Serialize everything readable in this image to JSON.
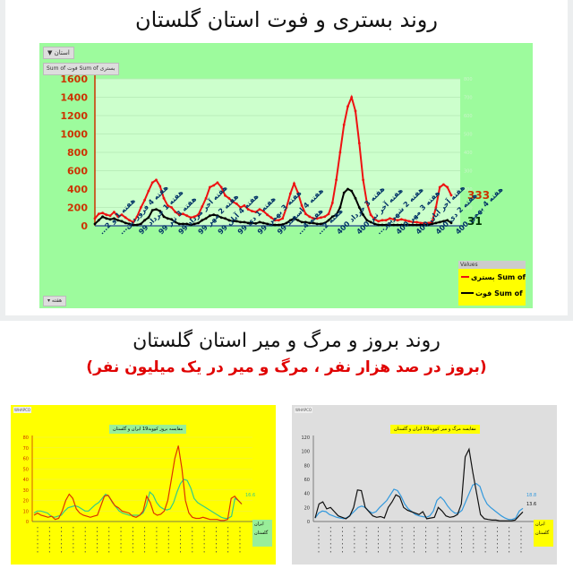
{
  "top": {
    "title": "روند بستری و فوت استان گلستان",
    "filter_button": "استان ▼",
    "sum_buttons": "Sum of فوت   Sum of بستری",
    "week_button": "▾ هفته",
    "legend_header": "Values",
    "legend_items": [
      "بستری Sum of",
      "فوت Sum of"
    ],
    "end_labels": {
      "hospitalized": "333",
      "deaths": "31"
    }
  },
  "bottom": {
    "title": "روند بروز و مرگ و میر استان گلستان",
    "subtitle": "(بروز در صد هزار نفر ، مرگ و میر در یک میلیون نفر)",
    "left_chart_title": "مقایسه بروز کووید19 ایران و گلستان",
    "right_chart_title": "مقایسه مرگ و میر کووید19 ایران و گلستان",
    "legend_items": [
      "ایران",
      "گلستان"
    ],
    "left_end_label": "16.6",
    "right_end_labels": [
      "18.8",
      "13.6"
    ]
  },
  "colors": {
    "hospitalized": "#ee1111",
    "deaths": "#000000",
    "axis_left": "#cc3300",
    "iran_incidence": "#33cc88",
    "golestan_incidence": "#dd3300",
    "iran_mortality": "#3399dd",
    "golestan_mortality": "#111111"
  },
  "chart_data": [
    {
      "type": "line",
      "title": "روند بستری و فوت استان گلستان",
      "xlabel": "",
      "ylabel": "",
      "ylim": [
        0,
        1600
      ],
      "yticks": [
        0,
        200,
        400,
        600,
        800,
        1000,
        1200,
        1400,
        1600
      ],
      "y2lim": [
        0,
        800
      ],
      "y2ticks": [
        0,
        100,
        200,
        300,
        400,
        500,
        600,
        700,
        800
      ],
      "grid": true,
      "legend_position": "bottom-right",
      "categories": [
        "هفته 1 و 2...",
        "هفته 4 فروردین...",
        "هفته 1 خرداد 99",
        "هفته 3 تیر 99",
        "هفته آخر مرداد 99",
        "هفته 2 مهر 99",
        "هفته 4 آبان 99",
        "هفته 1 دی 99",
        "هفته 3 بهمن 99",
        "هفته 4 اسفند 99",
        "هفته 4...",
        "هفته 2...",
        "هفته 3 خرداد 400",
        "هفته آخر تیر 400",
        "هفته 2 شهریور...",
        "هفته 3 مهر 400",
        "هفته آخر آبان 400",
        "هفته 2 دی 400",
        "هفته 4 بهمن 400"
      ],
      "series": [
        {
          "name": "Sum of بستری",
          "values": [
            80,
            130,
            140,
            120,
            110,
            150,
            100,
            120,
            90,
            60,
            40,
            100,
            200,
            280,
            380,
            470,
            500,
            430,
            300,
            220,
            200,
            150,
            120,
            130,
            110,
            90,
            100,
            120,
            210,
            300,
            420,
            440,
            470,
            420,
            330,
            300,
            260,
            240,
            200,
            220,
            180,
            160,
            150,
            180,
            160,
            120,
            90,
            60,
            60,
            80,
            200,
            350,
            460,
            360,
            220,
            130,
            100,
            80,
            80,
            90,
            100,
            130,
            250,
            500,
            800,
            1100,
            1300,
            1400,
            1250,
            900,
            500,
            250,
            120,
            70,
            50,
            60,
            60,
            80,
            70,
            60,
            70,
            60,
            50,
            40,
            40,
            30,
            30,
            30,
            40,
            200,
            420,
            450,
            420,
            333
          ]
        },
        {
          "name": "Sum of فوت",
          "values": [
            20,
            60,
            100,
            80,
            70,
            80,
            60,
            50,
            30,
            20,
            10,
            10,
            20,
            60,
            90,
            170,
            180,
            160,
            100,
            80,
            70,
            40,
            20,
            20,
            20,
            10,
            20,
            30,
            60,
            80,
            110,
            120,
            110,
            90,
            80,
            60,
            50,
            50,
            40,
            40,
            30,
            30,
            25,
            40,
            30,
            20,
            10,
            10,
            10,
            15,
            30,
            60,
            80,
            60,
            40,
            40,
            30,
            30,
            20,
            20,
            30,
            60,
            100,
            120,
            200,
            360,
            400,
            380,
            300,
            200,
            120,
            60,
            40,
            20,
            10,
            10,
            10,
            10,
            10,
            10,
            10,
            10,
            10,
            10,
            10,
            10,
            10,
            10,
            20,
            30,
            40,
            50,
            60,
            31
          ]
        }
      ]
    },
    {
      "type": "line",
      "title": "مقایسه بروز کووید19 ایران و گلستان",
      "ylim": [
        0,
        80
      ],
      "yticks": [
        0,
        10,
        20,
        30,
        40,
        50,
        60,
        70,
        80
      ],
      "grid": true,
      "series": [
        {
          "name": "ایران",
          "values": [
            8,
            10,
            10,
            9,
            8,
            5,
            4,
            5,
            6,
            10,
            13,
            14,
            15,
            14,
            12,
            10,
            10,
            13,
            16,
            18,
            22,
            26,
            24,
            18,
            14,
            10,
            8,
            7,
            6,
            6,
            6,
            6,
            8,
            15,
            28,
            25,
            18,
            14,
            12,
            11,
            12,
            18,
            28,
            36,
            40,
            39,
            32,
            22,
            18,
            16,
            14,
            12,
            10,
            8,
            6,
            4,
            3,
            3,
            5,
            22,
            20,
            16.6
          ]
        },
        {
          "name": "گلستان",
          "values": [
            6,
            8,
            6,
            5,
            4,
            5,
            2,
            3,
            10,
            20,
            26,
            22,
            12,
            8,
            6,
            5,
            4,
            5,
            6,
            15,
            24,
            25,
            20,
            15,
            13,
            10,
            9,
            8,
            5,
            4,
            6,
            10,
            24,
            18,
            8,
            6,
            7,
            10,
            20,
            40,
            60,
            72,
            50,
            20,
            8,
            4,
            3,
            3,
            4,
            3,
            2,
            2,
            2,
            1,
            1,
            2,
            22,
            24,
            20,
            16.6
          ]
        }
      ],
      "end_label": "16.6"
    },
    {
      "type": "line",
      "title": "مقایسه مرگ و میر کووید19 ایران و گلستان",
      "ylim": [
        0,
        120
      ],
      "yticks": [
        0,
        20,
        40,
        60,
        80,
        100,
        120
      ],
      "grid": false,
      "series": [
        {
          "name": "ایران",
          "values": [
            5,
            12,
            15,
            14,
            10,
            8,
            6,
            5,
            4,
            6,
            10,
            15,
            20,
            22,
            20,
            15,
            12,
            14,
            20,
            25,
            30,
            38,
            46,
            44,
            36,
            25,
            18,
            14,
            10,
            8,
            7,
            6,
            8,
            15,
            30,
            35,
            30,
            22,
            16,
            12,
            12,
            16,
            28,
            40,
            52,
            54,
            50,
            35,
            25,
            20,
            16,
            12,
            8,
            5,
            3,
            3,
            5,
            15,
            18.8
          ]
        },
        {
          "name": "گلستان",
          "values": [
            5,
            25,
            28,
            18,
            20,
            14,
            8,
            6,
            4,
            8,
            20,
            45,
            44,
            20,
            14,
            8,
            6,
            7,
            5,
            20,
            28,
            38,
            35,
            20,
            16,
            14,
            12,
            10,
            14,
            4,
            5,
            6,
            20,
            15,
            8,
            6,
            7,
            10,
            25,
            92,
            103,
            70,
            40,
            10,
            4,
            3,
            2,
            2,
            1,
            1,
            1,
            1,
            2,
            8,
            13.6
          ]
        }
      ],
      "end_labels": [
        "18.8",
        "13.6"
      ]
    }
  ]
}
